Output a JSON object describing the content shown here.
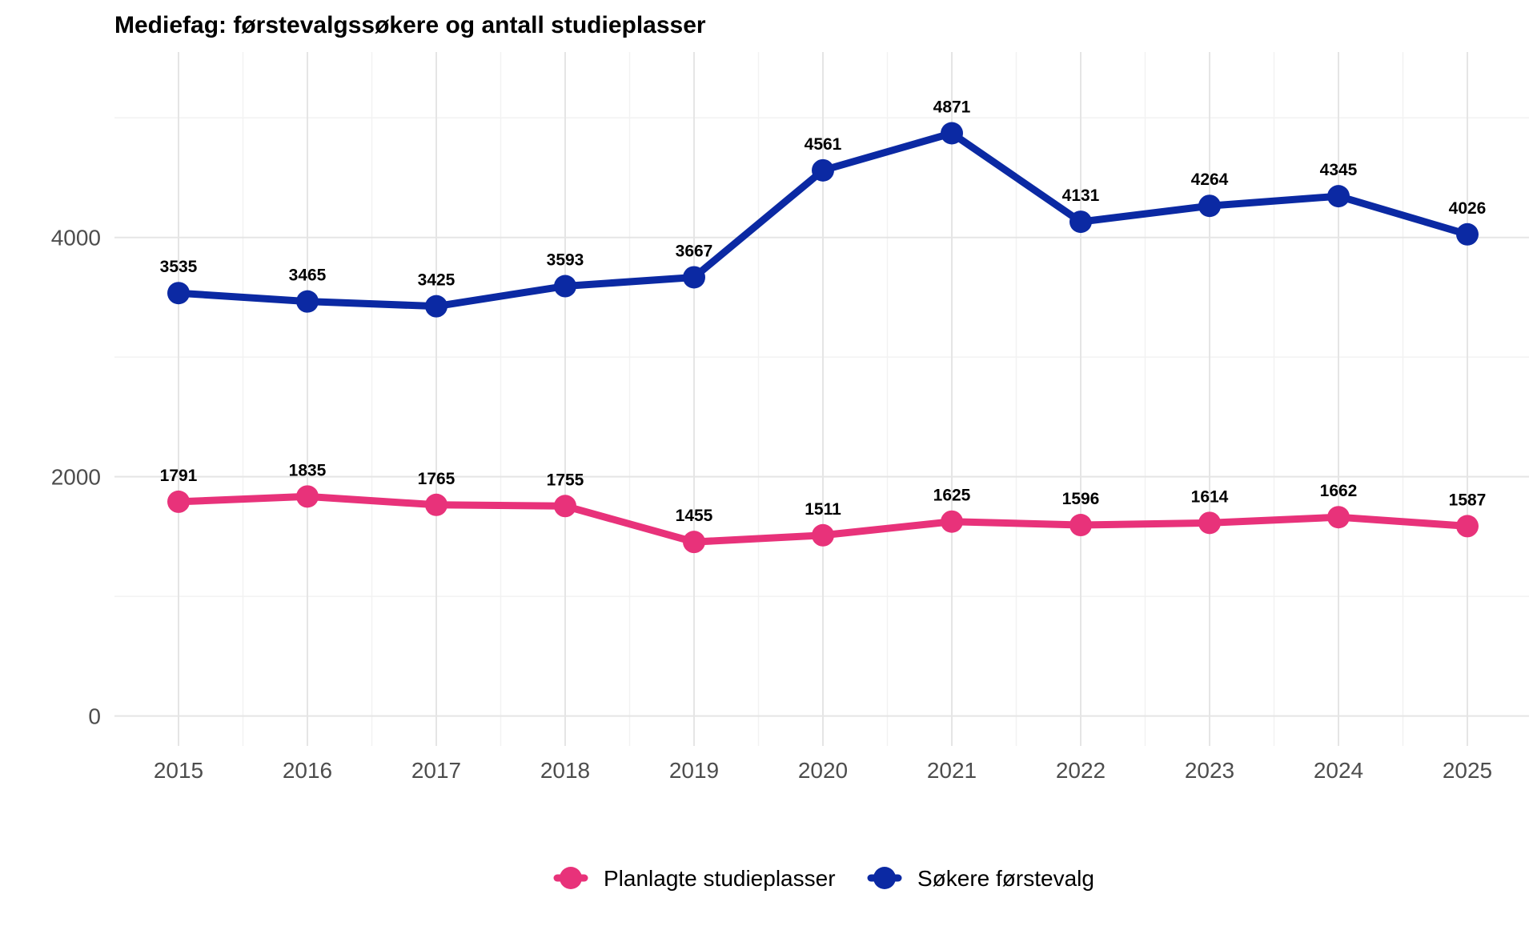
{
  "chart_data": {
    "type": "line",
    "title": "Mediefag: førstevalgssøkere og antall studieplasser",
    "xlabel": "",
    "ylabel": "",
    "categories": [
      "2015",
      "2016",
      "2017",
      "2018",
      "2019",
      "2020",
      "2021",
      "2022",
      "2023",
      "2024",
      "2025"
    ],
    "y_ticks": [
      "0",
      "2000",
      "4000"
    ],
    "ylim": [
      -250,
      5550
    ],
    "grid": true,
    "legend_position": "bottom",
    "series": [
      {
        "name": "Planlagte studieplasser",
        "color": "#e8327a",
        "values": [
          1791,
          1835,
          1765,
          1755,
          1455,
          1511,
          1625,
          1596,
          1614,
          1662,
          1587
        ]
      },
      {
        "name": "Søkere førstevalg",
        "color": "#0b29a3",
        "values": [
          3535,
          3465,
          3425,
          3593,
          3667,
          4561,
          4871,
          4131,
          4264,
          4345,
          4026
        ]
      }
    ]
  }
}
